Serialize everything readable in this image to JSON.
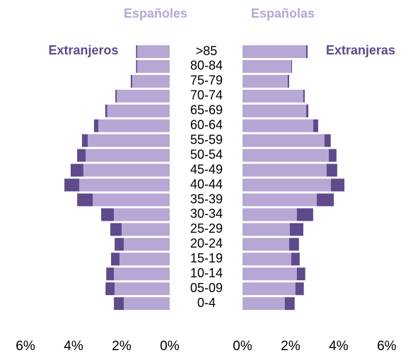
{
  "chart_data": {
    "type": "pyramid",
    "categories": [
      ">85",
      "80-84",
      "75-79",
      "70-74",
      "65-69",
      "60-64",
      "55-59",
      "50-54",
      "45-49",
      "40-44",
      "35-39",
      "30-34",
      "25-29",
      "20-24",
      "15-19",
      "10-14",
      "05-09",
      "0-4"
    ],
    "series": [
      {
        "name": "Españoles",
        "side": "left",
        "color": "#b6a7d4",
        "values": [
          1.35,
          1.35,
          1.56,
          2.2,
          2.6,
          2.97,
          3.41,
          3.5,
          3.59,
          3.76,
          3.2,
          2.32,
          2.0,
          1.91,
          2.09,
          2.32,
          2.29,
          1.91
        ]
      },
      {
        "name": "Extranjeros",
        "side": "left",
        "color": "#5f4a8b",
        "values": [
          0.05,
          0.05,
          0.06,
          0.06,
          0.08,
          0.18,
          0.24,
          0.35,
          0.53,
          0.62,
          0.65,
          0.53,
          0.47,
          0.38,
          0.35,
          0.32,
          0.38,
          0.41
        ]
      },
      {
        "name": "Españolas",
        "side": "right",
        "color": "#b6a7d4",
        "values": [
          2.65,
          2.03,
          1.88,
          2.53,
          2.65,
          2.94,
          3.41,
          3.59,
          3.5,
          3.68,
          3.09,
          2.26,
          1.97,
          1.94,
          2.03,
          2.26,
          2.2,
          1.76
        ]
      },
      {
        "name": "Extranjeras",
        "side": "right",
        "color": "#5f4a8b",
        "values": [
          0.06,
          0.03,
          0.06,
          0.06,
          0.09,
          0.21,
          0.26,
          0.32,
          0.44,
          0.56,
          0.71,
          0.68,
          0.56,
          0.41,
          0.35,
          0.35,
          0.35,
          0.41
        ]
      }
    ],
    "xlim": [
      0,
      6
    ],
    "xticks": [
      {
        "value": 0,
        "label": "0%"
      },
      {
        "value": 2,
        "label": "2%"
      },
      {
        "value": 4,
        "label": "4%"
      },
      {
        "value": 6,
        "label": "6%"
      }
    ]
  }
}
